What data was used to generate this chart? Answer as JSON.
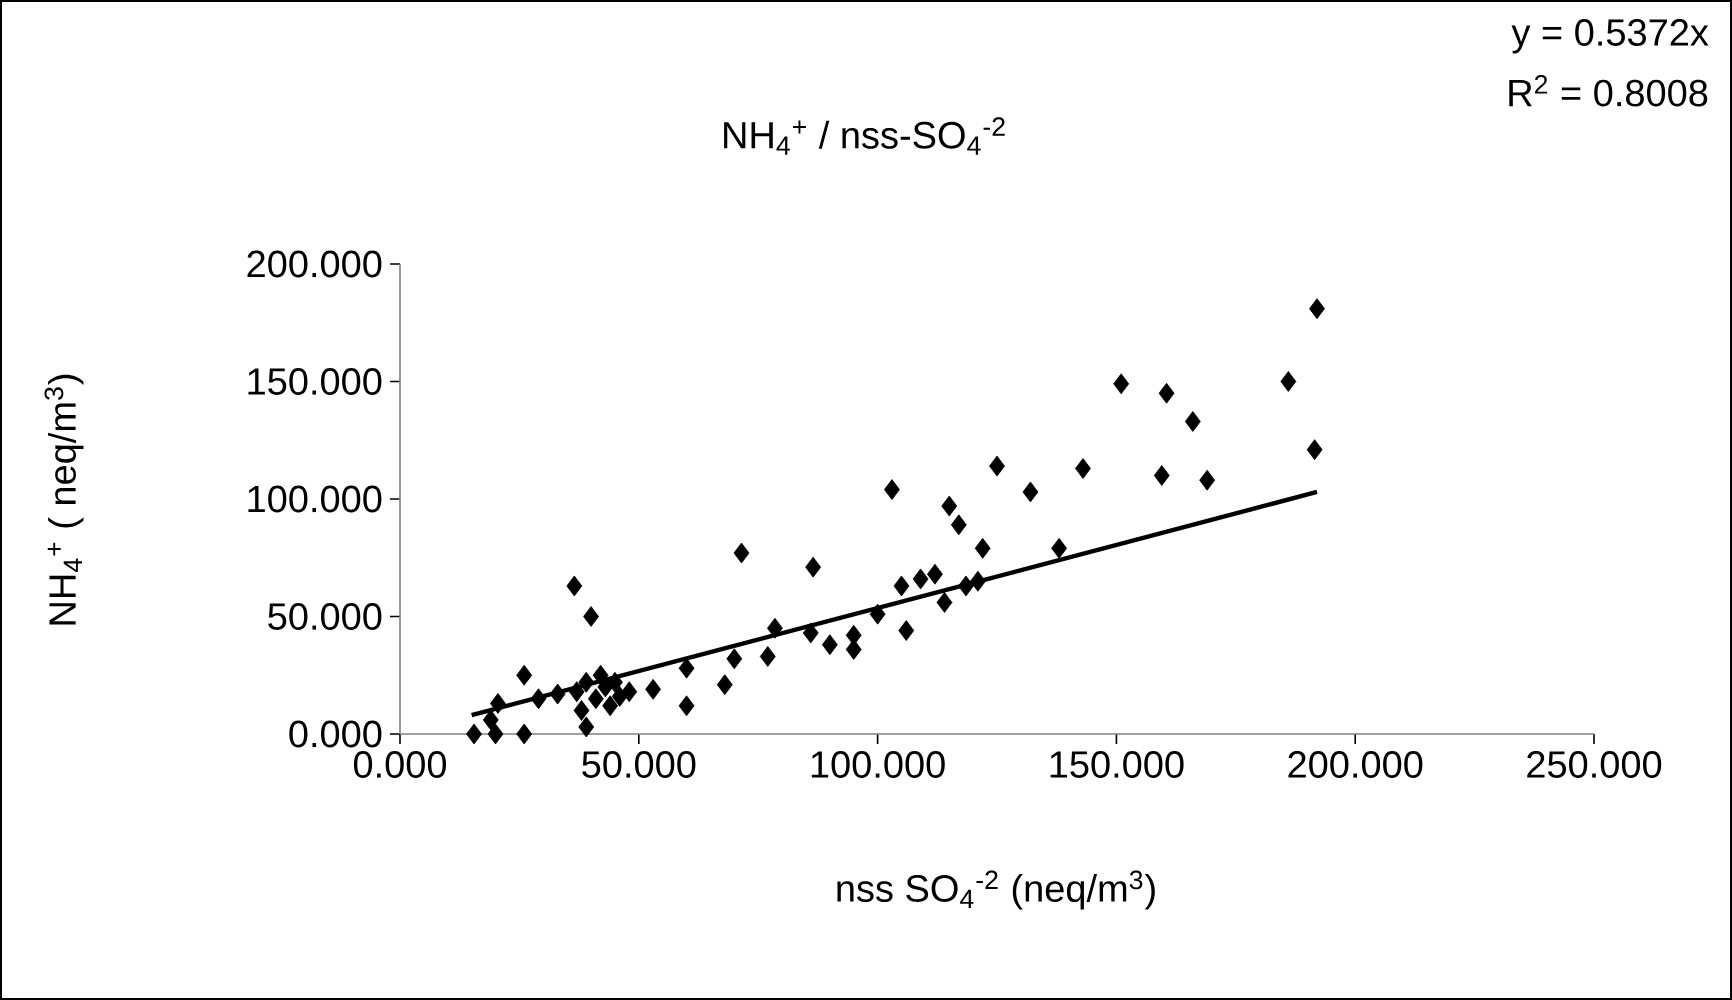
{
  "chart_data": {
    "type": "scatter",
    "title": "NH$_{4}$$^{+}$ / nss-SO$_{4}$$^{-2}$",
    "xlabel": "nss SO$_{4}$$^{-2}$ (neq/m$^{3}$)",
    "ylabel": "NH$_{4}$$^{+}$ ( neq/m$^{3}$)",
    "annotations": [
      "y = 0.5372x",
      "R$^{2}$ = 0.8008"
    ],
    "xlim": [
      0,
      250
    ],
    "ylim": [
      0,
      200
    ],
    "xticks": [
      {
        "value": 0,
        "label": "0.000"
      },
      {
        "value": 50,
        "label": "50.000"
      },
      {
        "value": 100,
        "label": "100.000"
      },
      {
        "value": 150,
        "label": "150.000"
      },
      {
        "value": 200,
        "label": "200.000"
      },
      {
        "value": 250,
        "label": "250.000"
      }
    ],
    "yticks": [
      {
        "value": 0,
        "label": "0.000"
      },
      {
        "value": 50,
        "label": "50.000"
      },
      {
        "value": 100,
        "label": "100.000"
      },
      {
        "value": 150,
        "label": "150.000"
      },
      {
        "value": 200,
        "label": "200.000"
      }
    ],
    "grid": false,
    "marker": "diamond",
    "series": [
      {
        "color": "#000000",
        "x": [
          15.5,
          19,
          20.5,
          20,
          26,
          26,
          29,
          36.5,
          40,
          39,
          37,
          39,
          41,
          43,
          44,
          46,
          48,
          38,
          42,
          45,
          33,
          53,
          60,
          60,
          68,
          70,
          71.5,
          77,
          78.5,
          86,
          86.5,
          90,
          95,
          95,
          100,
          103,
          106,
          105,
          109,
          112,
          114,
          115,
          117,
          118.5,
          121,
          122,
          125,
          132,
          138,
          143,
          151,
          159.5,
          160.5,
          166,
          169,
          186,
          191.5,
          192
        ],
        "values": [
          0,
          6,
          13,
          0,
          25,
          0,
          15,
          63,
          50,
          3,
          18,
          22,
          15,
          20,
          12,
          16,
          18,
          10,
          25,
          22,
          17,
          19,
          28,
          12,
          21,
          32,
          77,
          33,
          45,
          43,
          71,
          38,
          36,
          42,
          51,
          104,
          44,
          63,
          66,
          68,
          56,
          97,
          89,
          63,
          65,
          79,
          114,
          103,
          79,
          113,
          149,
          110,
          145,
          133,
          108,
          150,
          121,
          181
        ]
      },
      {
        "type": "line",
        "color": "#000000",
        "marker": "none",
        "x": [
          15,
          192
        ],
        "values": [
          8,
          103
        ]
      }
    ]
  }
}
